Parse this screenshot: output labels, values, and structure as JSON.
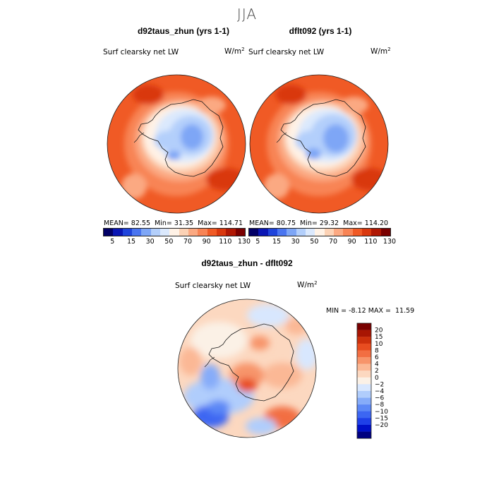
{
  "season": "JJA",
  "colors": {
    "coast": "#1a1a1a",
    "abs_palette": [
      "#020066",
      "#0a16b4",
      "#1f44db",
      "#4a75f0",
      "#7ea6f6",
      "#b3cffb",
      "#dbe9fd",
      "#fff2e6",
      "#fcd2b5",
      "#fba982",
      "#f88455",
      "#f05a25",
      "#d9380e",
      "#b01804",
      "#7a0000"
    ],
    "diff_palette": [
      "#000080",
      "#0010c8",
      "#1f40e8",
      "#3c66f2",
      "#5c88f6",
      "#86acf9",
      "#b0cdfc",
      "#d8e7fe",
      "#fbf1e6",
      "#fcd8c0",
      "#fbb895",
      "#f7946a",
      "#f26e42",
      "#e84d20",
      "#cc300c",
      "#a81503",
      "#780000"
    ]
  },
  "chart_data": [
    {
      "type": "heatmap",
      "projection": "south-polar-stereographic",
      "title": "d92taus_zhun (yrs 1-1)",
      "variable": "Surf clearsky net LW",
      "units": "W/m",
      "units_exp": "2",
      "stats": {
        "mean_label": "MEAN=",
        "mean": "82.55",
        "min_label": "Min=",
        "min": "31.35",
        "max_label": "Max=",
        "max": "114.71"
      },
      "colorbar_ticks": [
        "5",
        "15",
        "30",
        "50",
        "70",
        "90",
        "110",
        "130"
      ]
    },
    {
      "type": "heatmap",
      "projection": "south-polar-stereographic",
      "title": "dflt092 (yrs 1-1)",
      "variable": "Surf clearsky net LW",
      "units": "W/m",
      "units_exp": "2",
      "stats": {
        "mean_label": "MEAN=",
        "mean": "80.75",
        "min_label": "Min=",
        "min": "29.32",
        "max_label": "Max=",
        "max": "114.20"
      },
      "colorbar_ticks": [
        "5",
        "15",
        "30",
        "50",
        "70",
        "90",
        "110",
        "130"
      ]
    },
    {
      "type": "heatmap",
      "projection": "south-polar-stereographic",
      "title": "d92taus_zhun - dflt092",
      "variable": "Surf clearsky net LW",
      "units": "W/m",
      "units_exp": "2",
      "stats": {
        "min_label": "MIN =",
        "min": "-8.12",
        "max_label": "MAX =",
        "max": "11.59"
      },
      "colorbar_levels": [
        "20",
        "15",
        "10",
        "8",
        "6",
        "4",
        "2",
        "0",
        "−2",
        "−4",
        "−6",
        "−8",
        "−10",
        "−15",
        "−20"
      ]
    }
  ]
}
